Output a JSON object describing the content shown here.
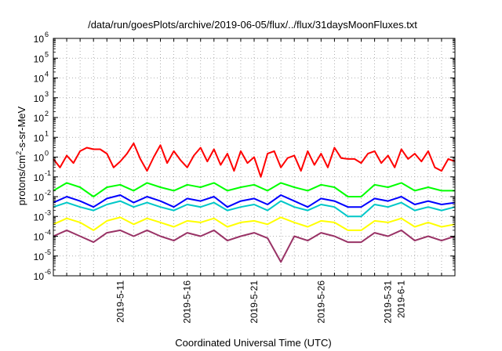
{
  "chart_data": {
    "type": "line",
    "title": "/data/run/goesPlots/archive/2019-06-05/flux/../flux/31daysMoonFluxes.txt",
    "xlabel": "Coordinated Universal Time (UTC)",
    "ylabel": "protons/cm²-s-sr-MeV",
    "ylabel_parts": {
      "before": "protons/cm",
      "sup": "2",
      "after": "-s-sr-MeV"
    },
    "yscale": "log",
    "ylim": [
      1e-06,
      1000000.0
    ],
    "xlim": [
      "2019-05-06",
      "2019-06-05"
    ],
    "grid": true,
    "y_tick_exponents": [
      -6,
      -5,
      -4,
      -3,
      -2,
      -1,
      0,
      1,
      2,
      3,
      4,
      5,
      6
    ],
    "y_tick_base": "10",
    "x_ticks": [
      {
        "date": "2019-05-11",
        "label": "2019-5-11"
      },
      {
        "date": "2019-05-16",
        "label": "2019-5-16"
      },
      {
        "date": "2019-05-21",
        "label": "2019-5-21"
      },
      {
        "date": "2019-05-26",
        "label": "2019-5-26"
      },
      {
        "date": "2019-05-31",
        "label": "2019-5-31"
      },
      {
        "date": "2019-06-01",
        "label": "2019-6-1"
      }
    ],
    "series": [
      {
        "color": "#ff0000",
        "values": [
          [
            "2019-05-06",
            0.8
          ],
          [
            "2019-05-06T12",
            0.3
          ],
          [
            "2019-05-07",
            1.2
          ],
          [
            "2019-05-07T12",
            0.5
          ],
          [
            "2019-05-08",
            2.0
          ],
          [
            "2019-05-08T12",
            3.0
          ],
          [
            "2019-05-09",
            2.5
          ],
          [
            "2019-05-09T12",
            2.5
          ],
          [
            "2019-05-10",
            1.5
          ],
          [
            "2019-05-10T12",
            0.3
          ],
          [
            "2019-05-11",
            0.6
          ],
          [
            "2019-05-11T12",
            1.5
          ],
          [
            "2019-05-12",
            5.0
          ],
          [
            "2019-05-12T12",
            0.8
          ],
          [
            "2019-05-13",
            0.2
          ],
          [
            "2019-05-13T12",
            1.0
          ],
          [
            "2019-05-14",
            4.0
          ],
          [
            "2019-05-14T12",
            0.5
          ],
          [
            "2019-05-15",
            2.0
          ],
          [
            "2019-05-15T12",
            0.7
          ],
          [
            "2019-05-16",
            0.3
          ],
          [
            "2019-05-16T12",
            1.2
          ],
          [
            "2019-05-17",
            3.0
          ],
          [
            "2019-05-17T12",
            0.6
          ],
          [
            "2019-05-18",
            2.5
          ],
          [
            "2019-05-18T12",
            0.4
          ],
          [
            "2019-05-19",
            1.5
          ],
          [
            "2019-05-19T12",
            0.2
          ],
          [
            "2019-05-20",
            2.0
          ],
          [
            "2019-05-20T12",
            0.5
          ],
          [
            "2019-05-21",
            1.0
          ],
          [
            "2019-05-21T12",
            0.1
          ],
          [
            "2019-05-22",
            1.5
          ],
          [
            "2019-05-22T12",
            2.0
          ],
          [
            "2019-05-23",
            0.3
          ],
          [
            "2019-05-23T12",
            0.9
          ],
          [
            "2019-05-24",
            1.2
          ],
          [
            "2019-05-24T12",
            0.2
          ],
          [
            "2019-05-25",
            2.0
          ],
          [
            "2019-05-25T12",
            0.4
          ],
          [
            "2019-05-26",
            1.5
          ],
          [
            "2019-05-26T12",
            0.3
          ],
          [
            "2019-05-27",
            3.0
          ],
          [
            "2019-05-27T12",
            0.9
          ],
          [
            "2019-05-28",
            0.8
          ],
          [
            "2019-05-28T12",
            0.8
          ],
          [
            "2019-05-29",
            0.5
          ],
          [
            "2019-05-29T12",
            1.5
          ],
          [
            "2019-05-30",
            2.0
          ],
          [
            "2019-05-30T12",
            0.5
          ],
          [
            "2019-05-31",
            1.2
          ],
          [
            "2019-05-31T12",
            0.3
          ],
          [
            "2019-06-01",
            2.5
          ],
          [
            "2019-06-01T12",
            0.8
          ],
          [
            "2019-06-02",
            1.5
          ],
          [
            "2019-06-02T12",
            0.6
          ],
          [
            "2019-06-03",
            2.0
          ],
          [
            "2019-06-03T12",
            0.3
          ],
          [
            "2019-06-04",
            0.2
          ],
          [
            "2019-06-04T12",
            0.8
          ],
          [
            "2019-06-05",
            0.6
          ]
        ]
      },
      {
        "color": "#00ff00",
        "values": [
          [
            "2019-05-06",
            0.02
          ],
          [
            "2019-05-07",
            0.05
          ],
          [
            "2019-05-08",
            0.03
          ],
          [
            "2019-05-09",
            0.01
          ],
          [
            "2019-05-10",
            0.03
          ],
          [
            "2019-05-11",
            0.04
          ],
          [
            "2019-05-12",
            0.02
          ],
          [
            "2019-05-13",
            0.05
          ],
          [
            "2019-05-14",
            0.03
          ],
          [
            "2019-05-15",
            0.02
          ],
          [
            "2019-05-16",
            0.04
          ],
          [
            "2019-05-17",
            0.03
          ],
          [
            "2019-05-18",
            0.05
          ],
          [
            "2019-05-19",
            0.02
          ],
          [
            "2019-05-20",
            0.03
          ],
          [
            "2019-05-21",
            0.04
          ],
          [
            "2019-05-22",
            0.02
          ],
          [
            "2019-05-23",
            0.05
          ],
          [
            "2019-05-24",
            0.03
          ],
          [
            "2019-05-25",
            0.02
          ],
          [
            "2019-05-26",
            0.04
          ],
          [
            "2019-05-27",
            0.03
          ],
          [
            "2019-05-28",
            0.01
          ],
          [
            "2019-05-29",
            0.01
          ],
          [
            "2019-05-30",
            0.04
          ],
          [
            "2019-05-31",
            0.03
          ],
          [
            "2019-06-01",
            0.05
          ],
          [
            "2019-06-02",
            0.02
          ],
          [
            "2019-06-03",
            0.03
          ],
          [
            "2019-06-04",
            0.02
          ],
          [
            "2019-06-05",
            0.02
          ]
        ]
      },
      {
        "color": "#00c8c8",
        "values": [
          [
            "2019-05-06",
            0.003
          ],
          [
            "2019-05-07",
            0.005
          ],
          [
            "2019-05-08",
            0.003
          ],
          [
            "2019-05-09",
            0.002
          ],
          [
            "2019-05-10",
            0.004
          ],
          [
            "2019-05-11",
            0.006
          ],
          [
            "2019-05-12",
            0.003
          ],
          [
            "2019-05-13",
            0.005
          ],
          [
            "2019-05-14",
            0.003
          ],
          [
            "2019-05-15",
            0.002
          ],
          [
            "2019-05-16",
            0.004
          ],
          [
            "2019-05-17",
            0.003
          ],
          [
            "2019-05-18",
            0.005
          ],
          [
            "2019-05-19",
            0.002
          ],
          [
            "2019-05-20",
            0.003
          ],
          [
            "2019-05-21",
            0.004
          ],
          [
            "2019-05-22",
            0.002
          ],
          [
            "2019-05-23",
            0.006
          ],
          [
            "2019-05-24",
            0.003
          ],
          [
            "2019-05-25",
            0.002
          ],
          [
            "2019-05-26",
            0.004
          ],
          [
            "2019-05-27",
            0.003
          ],
          [
            "2019-05-28",
            0.001
          ],
          [
            "2019-05-29",
            0.001
          ],
          [
            "2019-05-30",
            0.004
          ],
          [
            "2019-05-31",
            0.003
          ],
          [
            "2019-06-01",
            0.005
          ],
          [
            "2019-06-02",
            0.002
          ],
          [
            "2019-06-03",
            0.003
          ],
          [
            "2019-06-04",
            0.002
          ],
          [
            "2019-06-05",
            0.003
          ]
        ]
      },
      {
        "color": "#0000ff",
        "values": [
          [
            "2019-05-06",
            0.005
          ],
          [
            "2019-05-07",
            0.01
          ],
          [
            "2019-05-08",
            0.006
          ],
          [
            "2019-05-09",
            0.003
          ],
          [
            "2019-05-10",
            0.008
          ],
          [
            "2019-05-11",
            0.012
          ],
          [
            "2019-05-12",
            0.005
          ],
          [
            "2019-05-13",
            0.01
          ],
          [
            "2019-05-14",
            0.006
          ],
          [
            "2019-05-15",
            0.003
          ],
          [
            "2019-05-16",
            0.008
          ],
          [
            "2019-05-17",
            0.006
          ],
          [
            "2019-05-18",
            0.01
          ],
          [
            "2019-05-19",
            0.003
          ],
          [
            "2019-05-20",
            0.006
          ],
          [
            "2019-05-21",
            0.008
          ],
          [
            "2019-05-22",
            0.004
          ],
          [
            "2019-05-23",
            0.012
          ],
          [
            "2019-05-24",
            0.006
          ],
          [
            "2019-05-25",
            0.003
          ],
          [
            "2019-05-26",
            0.008
          ],
          [
            "2019-05-27",
            0.006
          ],
          [
            "2019-05-28",
            0.003
          ],
          [
            "2019-05-29",
            0.003
          ],
          [
            "2019-05-30",
            0.008
          ],
          [
            "2019-05-31",
            0.006
          ],
          [
            "2019-06-01",
            0.01
          ],
          [
            "2019-06-02",
            0.004
          ],
          [
            "2019-06-03",
            0.006
          ],
          [
            "2019-06-04",
            0.004
          ],
          [
            "2019-06-05",
            0.005
          ]
        ]
      },
      {
        "color": "#ffff00",
        "values": [
          [
            "2019-05-06",
            0.0004
          ],
          [
            "2019-05-07",
            0.0008
          ],
          [
            "2019-05-08",
            0.0005
          ],
          [
            "2019-05-09",
            0.0002
          ],
          [
            "2019-05-10",
            0.0006
          ],
          [
            "2019-05-11",
            0.0009
          ],
          [
            "2019-05-12",
            0.0004
          ],
          [
            "2019-05-13",
            0.0008
          ],
          [
            "2019-05-14",
            0.0005
          ],
          [
            "2019-05-15",
            0.0003
          ],
          [
            "2019-05-16",
            0.0006
          ],
          [
            "2019-05-17",
            0.0005
          ],
          [
            "2019-05-18",
            0.0008
          ],
          [
            "2019-05-19",
            0.0003
          ],
          [
            "2019-05-20",
            0.0005
          ],
          [
            "2019-05-21",
            0.0006
          ],
          [
            "2019-05-22",
            0.0004
          ],
          [
            "2019-05-23",
            0.0009
          ],
          [
            "2019-05-24",
            0.0005
          ],
          [
            "2019-05-25",
            0.0003
          ],
          [
            "2019-05-26",
            0.0006
          ],
          [
            "2019-05-27",
            0.0005
          ],
          [
            "2019-05-28",
            0.0002
          ],
          [
            "2019-05-29",
            0.0002
          ],
          [
            "2019-05-30",
            0.0006
          ],
          [
            "2019-05-31",
            0.0005
          ],
          [
            "2019-06-01",
            0.0008
          ],
          [
            "2019-06-02",
            0.0003
          ],
          [
            "2019-06-03",
            0.0005
          ],
          [
            "2019-06-04",
            0.0003
          ],
          [
            "2019-06-05",
            0.0004
          ]
        ]
      },
      {
        "color": "#993366",
        "values": [
          [
            "2019-05-06",
            0.0001
          ],
          [
            "2019-05-07",
            0.0002
          ],
          [
            "2019-05-08",
            0.0001
          ],
          [
            "2019-05-09",
            5e-05
          ],
          [
            "2019-05-10",
            0.00015
          ],
          [
            "2019-05-11",
            0.0002
          ],
          [
            "2019-05-12",
            0.0001
          ],
          [
            "2019-05-13",
            0.0002
          ],
          [
            "2019-05-14",
            0.0001
          ],
          [
            "2019-05-15",
            6e-05
          ],
          [
            "2019-05-16",
            0.00015
          ],
          [
            "2019-05-17",
            0.0001
          ],
          [
            "2019-05-18",
            0.0002
          ],
          [
            "2019-05-19",
            6e-05
          ],
          [
            "2019-05-20",
            0.0001
          ],
          [
            "2019-05-21",
            0.00015
          ],
          [
            "2019-05-22",
            8e-05
          ],
          [
            "2019-05-23",
            5e-06
          ],
          [
            "2019-05-24",
            0.0001
          ],
          [
            "2019-05-25",
            6e-05
          ],
          [
            "2019-05-26",
            0.00015
          ],
          [
            "2019-05-27",
            0.0001
          ],
          [
            "2019-05-28",
            5e-05
          ],
          [
            "2019-05-29",
            5e-05
          ],
          [
            "2019-05-30",
            0.00015
          ],
          [
            "2019-05-31",
            0.0001
          ],
          [
            "2019-06-01",
            0.0002
          ],
          [
            "2019-06-02",
            6e-05
          ],
          [
            "2019-06-03",
            0.0001
          ],
          [
            "2019-06-04",
            6e-05
          ],
          [
            "2019-06-05",
            0.0001
          ]
        ]
      }
    ]
  }
}
